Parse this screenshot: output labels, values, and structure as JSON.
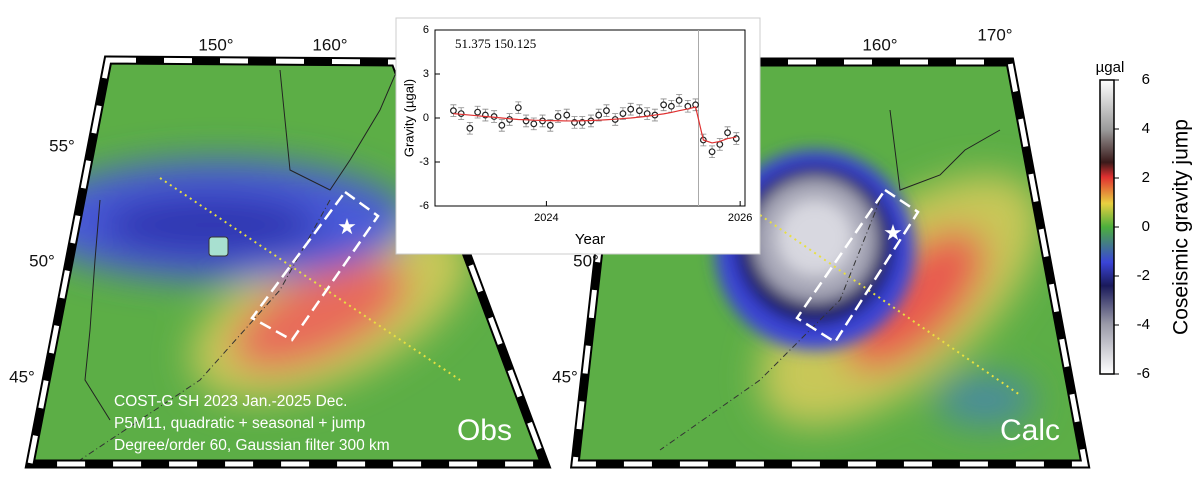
{
  "figure": {
    "left_map": {
      "lon_labels": [
        "150°",
        "160°"
      ],
      "lat_labels": [
        "55°",
        "50°",
        "45°"
      ],
      "caption_lines": [
        "COST-G SH 2023 Jan.-2025 Dec.",
        "P5M11, quadratic + seasonal + jump",
        "Degree/order 60, Gaussian filter 300 km"
      ],
      "label": "Obs"
    },
    "right_map": {
      "lon_labels": [
        "160°",
        "170°"
      ],
      "lat_labels": [
        "50°",
        "45°"
      ],
      "label": "Calc"
    },
    "colorbar": {
      "unit": "µgal",
      "label": "Coseismic gravity jump",
      "lim": [
        -6,
        6
      ],
      "ticks": [
        6,
        4,
        2,
        0,
        -2,
        -4,
        -6
      ]
    }
  },
  "chart_data": {
    "type": "line",
    "annotation": "51.375 150.125",
    "xlabel": "Year",
    "ylabel": "Gravity (µgal)",
    "x": [
      2023.04,
      2023.12,
      2023.21,
      2023.29,
      2023.37,
      2023.46,
      2023.54,
      2023.62,
      2023.71,
      2023.79,
      2023.87,
      2023.96,
      2024.04,
      2024.12,
      2024.21,
      2024.29,
      2024.37,
      2024.46,
      2024.54,
      2024.62,
      2024.71,
      2024.79,
      2024.87,
      2024.96,
      2025.04,
      2025.12,
      2025.21,
      2025.29,
      2025.37,
      2025.46,
      2025.54,
      2025.62,
      2025.71,
      2025.79,
      2025.87,
      2025.96
    ],
    "series": [
      {
        "style": "points",
        "color": "#222222",
        "values": [
          0.5,
          0.3,
          -0.7,
          0.4,
          0.2,
          0.1,
          -0.5,
          -0.1,
          0.7,
          -0.2,
          -0.4,
          -0.2,
          -0.5,
          0.1,
          0.2,
          -0.3,
          -0.3,
          -0.2,
          0.2,
          0.5,
          -0.1,
          0.3,
          0.6,
          0.5,
          0.3,
          0.2,
          0.9,
          0.8,
          1.2,
          0.8,
          0.9,
          -1.5,
          -2.3,
          -1.8,
          -1.0,
          -1.4
        ],
        "errors": [
          0.4,
          0.4,
          0.4,
          0.4,
          0.4,
          0.4,
          0.4,
          0.4,
          0.4,
          0.4,
          0.4,
          0.4,
          0.4,
          0.4,
          0.4,
          0.4,
          0.4,
          0.4,
          0.4,
          0.4,
          0.4,
          0.4,
          0.4,
          0.4,
          0.4,
          0.4,
          0.4,
          0.4,
          0.4,
          0.4,
          0.4,
          0.4,
          0.4,
          0.4,
          0.4,
          0.4
        ]
      },
      {
        "style": "line",
        "color": "#e03030",
        "values": [
          0.3,
          0.25,
          0.2,
          0.15,
          0.1,
          0.05,
          0.0,
          -0.05,
          -0.1,
          -0.12,
          -0.15,
          -0.17,
          -0.18,
          -0.19,
          -0.2,
          -0.2,
          -0.19,
          -0.17,
          -0.15,
          -0.12,
          -0.08,
          -0.04,
          0.0,
          0.06,
          0.12,
          0.2,
          0.28,
          0.38,
          0.5,
          0.62,
          0.75,
          -1.5,
          -1.7,
          -1.6,
          -1.4,
          -1.3
        ]
      }
    ],
    "vline": 2025.57,
    "xlim": [
      2022.85,
      2026.05
    ],
    "ylim": [
      -6,
      6
    ],
    "xticks": [
      2024,
      2026
    ],
    "yticks": [
      -6,
      -3,
      0,
      3,
      6
    ]
  }
}
